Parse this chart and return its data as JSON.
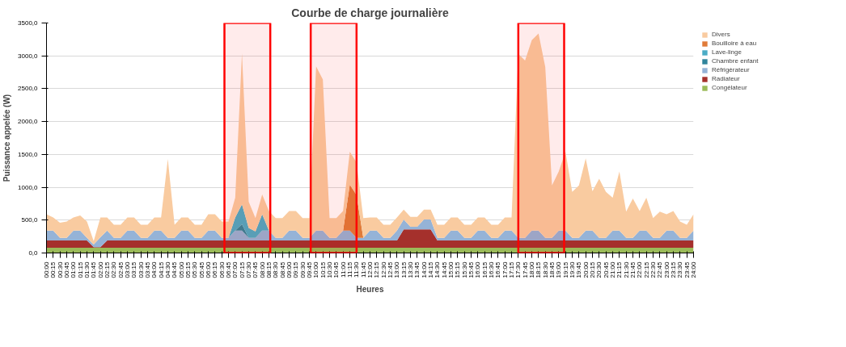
{
  "chart_data": {
    "type": "area",
    "stacked": true,
    "title": "Courbe de charge journalière",
    "xlabel": "Heures",
    "ylabel": "Puissance appelée (W)",
    "x": [
      0,
      0.25,
      0.5,
      0.75,
      1,
      1.25,
      1.5,
      1.75,
      2,
      2.25,
      2.5,
      2.75,
      3,
      3.25,
      3.5,
      3.75,
      4,
      4.25,
      4.5,
      4.75,
      5,
      5.25,
      5.5,
      5.75,
      6,
      6.25,
      6.5,
      6.75,
      7,
      7.25,
      7.5,
      7.75,
      8,
      8.25,
      8.5,
      8.75,
      9,
      9.25,
      9.5,
      9.75,
      10,
      10.25,
      10.5,
      10.75,
      11,
      11.25,
      11.5,
      11.75,
      12,
      12.25,
      12.5,
      12.75,
      13,
      13.25,
      13.5,
      13.75,
      14,
      14.25,
      14.5,
      14.75,
      15,
      15.25,
      15.5,
      15.75,
      16,
      16.25,
      16.5,
      16.75,
      17,
      17.25,
      17.5,
      17.75,
      18,
      18.25,
      18.5,
      18.75,
      19,
      19.25,
      19.5,
      19.75,
      20,
      20.25,
      20.5,
      20.75,
      21,
      21.25,
      21.5,
      21.75,
      22,
      22.25,
      22.5,
      22.75,
      23,
      23.25,
      23.5,
      23.75,
      24
    ],
    "series": [
      {
        "name": "Congélateur",
        "color": "#9bbb59",
        "values": [
          80,
          80,
          80,
          80,
          80,
          80,
          80,
          80,
          80,
          80,
          80,
          80,
          80,
          80,
          80,
          80,
          80,
          80,
          80,
          80,
          80,
          80,
          80,
          80,
          80,
          80,
          80,
          80,
          80,
          80,
          80,
          80,
          80,
          80,
          80,
          80,
          80,
          80,
          80,
          80,
          80,
          80,
          80,
          80,
          80,
          80,
          80,
          80,
          80,
          80,
          80,
          80,
          80,
          80,
          80,
          80,
          80,
          80,
          80,
          80,
          80,
          80,
          80,
          80,
          80,
          80,
          80,
          80,
          80,
          80,
          80,
          80,
          80,
          80,
          80,
          80,
          80,
          80,
          80,
          80,
          80,
          80,
          80,
          80,
          80,
          80,
          80,
          80,
          80,
          80,
          80,
          80,
          80,
          80,
          80,
          80,
          80
        ]
      },
      {
        "name": "Radiateur",
        "color": "#a5302c",
        "values": [
          110,
          110,
          110,
          110,
          110,
          110,
          110,
          10,
          10,
          110,
          110,
          110,
          110,
          110,
          110,
          110,
          110,
          110,
          110,
          110,
          110,
          110,
          110,
          110,
          110,
          110,
          110,
          110,
          110,
          110,
          110,
          110,
          110,
          110,
          110,
          110,
          110,
          110,
          110,
          110,
          110,
          110,
          110,
          110,
          110,
          110,
          110,
          110,
          110,
          110,
          110,
          110,
          110,
          280,
          280,
          280,
          280,
          280,
          110,
          110,
          110,
          110,
          110,
          110,
          110,
          110,
          110,
          110,
          110,
          110,
          110,
          110,
          110,
          110,
          110,
          110,
          110,
          110,
          110,
          110,
          110,
          110,
          110,
          110,
          110,
          110,
          110,
          110,
          110,
          110,
          110,
          110,
          110,
          110,
          110,
          110,
          110
        ]
      },
      {
        "name": "Réfrigérateur",
        "color": "#95b3d7",
        "values": [
          150,
          150,
          40,
          40,
          150,
          150,
          40,
          40,
          150,
          150,
          40,
          40,
          150,
          150,
          40,
          40,
          150,
          150,
          40,
          40,
          150,
          150,
          40,
          40,
          150,
          150,
          40,
          40,
          150,
          150,
          40,
          40,
          150,
          150,
          40,
          40,
          150,
          150,
          40,
          40,
          150,
          150,
          40,
          40,
          150,
          150,
          40,
          40,
          150,
          150,
          40,
          40,
          150,
          150,
          40,
          40,
          150,
          150,
          40,
          40,
          150,
          150,
          40,
          40,
          150,
          150,
          40,
          40,
          150,
          150,
          40,
          40,
          150,
          150,
          40,
          40,
          150,
          150,
          40,
          40,
          150,
          150,
          40,
          40,
          150,
          150,
          40,
          40,
          150,
          150,
          40,
          40,
          150,
          150,
          40,
          40,
          150
        ]
      },
      {
        "name": "Chambre enfant",
        "color": "#31859c",
        "values": [
          0,
          0,
          0,
          0,
          0,
          0,
          0,
          0,
          0,
          0,
          0,
          0,
          0,
          0,
          0,
          0,
          0,
          0,
          0,
          0,
          0,
          0,
          0,
          0,
          0,
          0,
          0,
          0,
          0,
          100,
          0,
          0,
          0,
          0,
          0,
          0,
          0,
          0,
          0,
          0,
          0,
          0,
          0,
          0,
          0,
          0,
          0,
          0,
          0,
          0,
          0,
          0,
          0,
          0,
          0,
          0,
          0,
          0,
          0,
          0,
          0,
          0,
          0,
          0,
          0,
          0,
          0,
          0,
          0,
          0,
          0,
          0,
          0,
          0,
          0,
          0,
          0,
          0,
          0,
          0,
          0,
          0,
          0,
          0,
          0,
          0,
          0,
          0,
          0,
          0,
          0,
          0,
          0,
          0,
          0,
          0,
          0
        ]
      },
      {
        "name": "Lave-linge",
        "color": "#4bacc6",
        "values": [
          0,
          0,
          0,
          0,
          0,
          0,
          0,
          0,
          0,
          0,
          0,
          0,
          0,
          0,
          0,
          0,
          0,
          0,
          0,
          0,
          0,
          0,
          0,
          0,
          0,
          0,
          0,
          0,
          200,
          300,
          150,
          100,
          250,
          0,
          0,
          0,
          0,
          0,
          0,
          0,
          0,
          0,
          0,
          0,
          0,
          0,
          0,
          0,
          0,
          0,
          0,
          0,
          0,
          0,
          0,
          0,
          0,
          0,
          0,
          0,
          0,
          0,
          0,
          0,
          0,
          0,
          0,
          0,
          0,
          0,
          0,
          0,
          0,
          0,
          0,
          0,
          0,
          0,
          0,
          0,
          0,
          0,
          0,
          0,
          0,
          0,
          0,
          0,
          0,
          0,
          0,
          0,
          0,
          0,
          0,
          0,
          0
        ]
      },
      {
        "name": "Bouilloire à eau",
        "color": "#e07b39",
        "values": [
          0,
          0,
          0,
          0,
          0,
          0,
          0,
          0,
          0,
          0,
          0,
          0,
          0,
          0,
          0,
          0,
          0,
          0,
          0,
          0,
          0,
          0,
          0,
          0,
          0,
          0,
          0,
          0,
          0,
          0,
          0,
          0,
          0,
          0,
          0,
          0,
          0,
          0,
          0,
          0,
          0,
          0,
          0,
          0,
          0,
          700,
          650,
          0,
          0,
          0,
          0,
          0,
          0,
          0,
          0,
          0,
          0,
          0,
          0,
          0,
          0,
          0,
          0,
          0,
          0,
          0,
          0,
          0,
          0,
          0,
          0,
          0,
          0,
          0,
          0,
          0,
          0,
          0,
          0,
          0,
          0,
          0,
          0,
          0,
          0,
          0,
          0,
          0,
          0,
          0,
          0,
          0,
          0,
          0,
          0,
          0,
          0
        ]
      },
      {
        "name": "Divers",
        "color": "#f9cba0",
        "values": [
          250,
          200,
          230,
          250,
          200,
          230,
          250,
          50,
          300,
          200,
          200,
          200,
          200,
          200,
          200,
          200,
          200,
          200,
          1200,
          200,
          200,
          200,
          200,
          200,
          250,
          250,
          250,
          250,
          300,
          2300,
          400,
          200,
          300,
          300,
          300,
          300,
          300,
          300,
          300,
          300,
          2500,
          2300,
          300,
          300,
          300,
          500,
          500,
          300,
          200,
          200,
          200,
          200,
          200,
          150,
          150,
          150,
          150,
          150,
          200,
          200,
          200,
          200,
          200,
          200,
          200,
          200,
          200,
          200,
          200,
          200,
          2800,
          2700,
          2900,
          3000,
          2600,
          800,
          900,
          1200,
          700,
          800,
          1100,
          600,
          900,
          700,
          500,
          900,
          400,
          600,
          300,
          500,
          300,
          400,
          250,
          300,
          250,
          200,
          250
        ]
      }
    ],
    "xlim": [
      0,
      24
    ],
    "xticks": [
      {
        "value": 0,
        "label": "00:00"
      },
      {
        "value": 0.25,
        "label": "00:15"
      },
      {
        "value": 0.5,
        "label": "00:30"
      },
      {
        "value": 0.75,
        "label": "00:45"
      },
      {
        "value": 1,
        "label": "01:00"
      },
      {
        "value": 1.25,
        "label": "01:15"
      },
      {
        "value": 1.5,
        "label": "01:30"
      },
      {
        "value": 1.75,
        "label": "01:45"
      },
      {
        "value": 2,
        "label": "02:00"
      },
      {
        "value": 2.25,
        "label": "02:15"
      },
      {
        "value": 2.5,
        "label": "02:30"
      },
      {
        "value": 2.75,
        "label": "02:45"
      },
      {
        "value": 3,
        "label": "03:00"
      },
      {
        "value": 3.25,
        "label": "03:15"
      },
      {
        "value": 3.5,
        "label": "03:30"
      },
      {
        "value": 3.75,
        "label": "03:45"
      },
      {
        "value": 4,
        "label": "04:00"
      },
      {
        "value": 4.25,
        "label": "04:15"
      },
      {
        "value": 4.5,
        "label": "04:30"
      },
      {
        "value": 4.75,
        "label": "04:45"
      },
      {
        "value": 5,
        "label": "05:00"
      },
      {
        "value": 5.25,
        "label": "05:15"
      },
      {
        "value": 5.5,
        "label": "05:30"
      },
      {
        "value": 5.75,
        "label": "05:45"
      },
      {
        "value": 6,
        "label": "06:00"
      },
      {
        "value": 6.25,
        "label": "06:15"
      },
      {
        "value": 6.5,
        "label": "06:30"
      },
      {
        "value": 6.75,
        "label": "06:45"
      },
      {
        "value": 7,
        "label": "07:00"
      },
      {
        "value": 7.25,
        "label": "07:15"
      },
      {
        "value": 7.5,
        "label": "07:30"
      },
      {
        "value": 7.75,
        "label": "07:45"
      },
      {
        "value": 8,
        "label": "08:00"
      },
      {
        "value": 8.25,
        "label": "08:15"
      },
      {
        "value": 8.5,
        "label": "08:30"
      },
      {
        "value": 8.75,
        "label": "08:45"
      },
      {
        "value": 9,
        "label": "09:00"
      },
      {
        "value": 9.25,
        "label": "09:15"
      },
      {
        "value": 9.5,
        "label": "09:30"
      },
      {
        "value": 9.75,
        "label": "09:45"
      },
      {
        "value": 10,
        "label": "10:00"
      },
      {
        "value": 10.25,
        "label": "10:15"
      },
      {
        "value": 10.5,
        "label": "10:30"
      },
      {
        "value": 10.75,
        "label": "10:45"
      },
      {
        "value": 11,
        "label": "11:00"
      },
      {
        "value": 11.25,
        "label": "11:15"
      },
      {
        "value": 11.5,
        "label": "11:30"
      },
      {
        "value": 11.75,
        "label": "11:45"
      },
      {
        "value": 12,
        "label": "12:00"
      },
      {
        "value": 12.25,
        "label": "12:15"
      },
      {
        "value": 12.5,
        "label": "12:30"
      },
      {
        "value": 12.75,
        "label": "12:45"
      },
      {
        "value": 13,
        "label": "13:00"
      },
      {
        "value": 13.25,
        "label": "13:15"
      },
      {
        "value": 13.5,
        "label": "13:30"
      },
      {
        "value": 13.75,
        "label": "13:45"
      },
      {
        "value": 14,
        "label": "14:00"
      },
      {
        "value": 14.25,
        "label": "14:15"
      },
      {
        "value": 14.5,
        "label": "14:30"
      },
      {
        "value": 14.75,
        "label": "14:45"
      },
      {
        "value": 15,
        "label": "15:00"
      },
      {
        "value": 15.25,
        "label": "15:15"
      },
      {
        "value": 15.5,
        "label": "15:30"
      },
      {
        "value": 15.75,
        "label": "15:45"
      },
      {
        "value": 16,
        "label": "16:00"
      },
      {
        "value": 16.25,
        "label": "16:15"
      },
      {
        "value": 16.5,
        "label": "16:30"
      },
      {
        "value": 16.75,
        "label": "16:45"
      },
      {
        "value": 17,
        "label": "17:00"
      },
      {
        "value": 17.25,
        "label": "17:15"
      },
      {
        "value": 17.5,
        "label": "17:30"
      },
      {
        "value": 17.75,
        "label": "17:45"
      },
      {
        "value": 18,
        "label": "18:00"
      },
      {
        "value": 18.25,
        "label": "18:15"
      },
      {
        "value": 18.5,
        "label": "18:30"
      },
      {
        "value": 18.75,
        "label": "18:45"
      },
      {
        "value": 19,
        "label": "19:00"
      },
      {
        "value": 19.25,
        "label": "19:15"
      },
      {
        "value": 19.5,
        "label": "19:30"
      },
      {
        "value": 19.75,
        "label": "19:45"
      },
      {
        "value": 20,
        "label": "20:00"
      },
      {
        "value": 20.25,
        "label": "20:15"
      },
      {
        "value": 20.5,
        "label": "20:30"
      },
      {
        "value": 20.75,
        "label": "20:45"
      },
      {
        "value": 21,
        "label": "21:00"
      },
      {
        "value": 21.25,
        "label": "21:15"
      },
      {
        "value": 21.5,
        "label": "21:30"
      },
      {
        "value": 21.75,
        "label": "21:45"
      },
      {
        "value": 22,
        "label": "22:00"
      },
      {
        "value": 22.25,
        "label": "22:15"
      },
      {
        "value": 22.5,
        "label": "22:30"
      },
      {
        "value": 22.75,
        "label": "22:45"
      },
      {
        "value": 23,
        "label": "23:00"
      },
      {
        "value": 23.25,
        "label": "23:15"
      },
      {
        "value": 23.5,
        "label": "23:30"
      },
      {
        "value": 23.75,
        "label": "23:45"
      },
      {
        "value": 24,
        "label": "24:00"
      }
    ],
    "ylim": [
      0,
      3500
    ],
    "yticks": [
      {
        "value": 0,
        "label": "0,0"
      },
      {
        "value": 500,
        "label": "500,0"
      },
      {
        "value": 1000,
        "label": "1000,0"
      },
      {
        "value": 1500,
        "label": "1500,0"
      },
      {
        "value": 2000,
        "label": "2000,0"
      },
      {
        "value": 2500,
        "label": "2500,0"
      },
      {
        "value": 3000,
        "label": "3000,0"
      },
      {
        "value": 3500,
        "label": "3500,0"
      }
    ],
    "grid": "y",
    "legend": "right",
    "bands": [
      {
        "axis": "x",
        "from": 6.6,
        "to": 8.3,
        "label": null,
        "color": "#ff0000"
      },
      {
        "axis": "x",
        "from": 9.8,
        "to": 11.5,
        "label": null,
        "color": "#ff0000"
      },
      {
        "axis": "x",
        "from": 17.5,
        "to": 19.2,
        "label": null,
        "color": "#ff0000"
      }
    ]
  }
}
